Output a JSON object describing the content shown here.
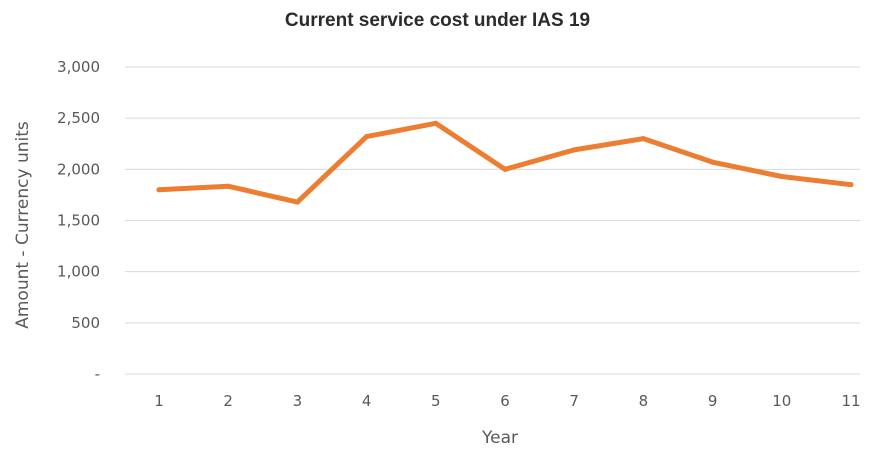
{
  "chart_data": {
    "type": "line",
    "title": "Current service cost under IAS 19",
    "xlabel": "Year",
    "ylabel": "Amount - Currency units",
    "categories": [
      "1",
      "2",
      "3",
      "4",
      "5",
      "6",
      "7",
      "8",
      "9",
      "10",
      "11"
    ],
    "series": [
      {
        "values": [
          1800,
          1835,
          1680,
          2320,
          2450,
          2000,
          2190,
          2300,
          2070,
          1930,
          1850
        ]
      }
    ],
    "ylim": [
      0,
      3000
    ],
    "yticks": [
      0,
      500,
      1000,
      1500,
      2000,
      2500,
      3000
    ],
    "ytick_labels": [
      "-",
      "500",
      "1,000",
      "1,500",
      "2,000",
      "2,500",
      "3,000"
    ],
    "grid": "horizontal",
    "legend": "none",
    "colors": {
      "line": "#ed7d31",
      "grid": "#d9d9d9",
      "text": "#595959"
    }
  }
}
